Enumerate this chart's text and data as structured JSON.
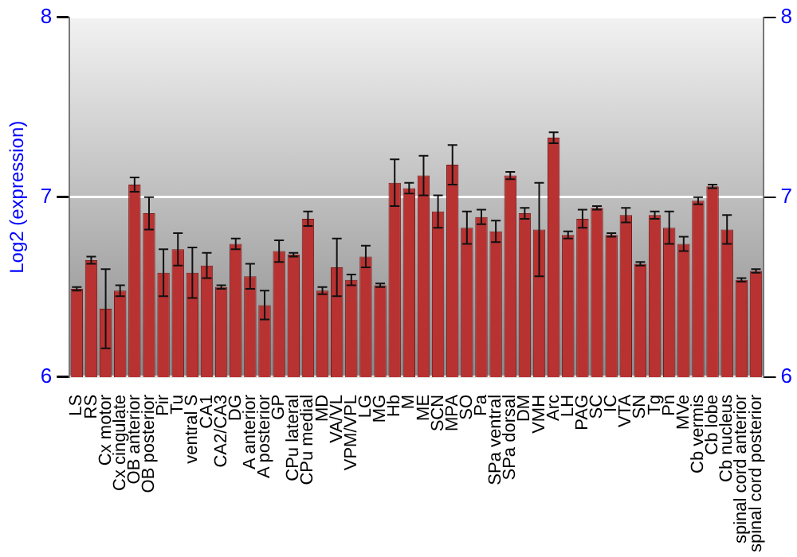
{
  "chart_data": {
    "type": "bar",
    "ylabel": "Log2 (expression)",
    "categories": [
      "LS",
      "RS",
      "Cx motor",
      "Cx cingulate",
      "OB anterior",
      "OB posterior",
      "Pir",
      "Tu",
      "ventral S",
      "CA1",
      "CA2/CA3",
      "DG",
      "A anterior",
      "A posterior",
      "GP",
      "CPu lateral",
      "CPu medial",
      "MD",
      "VA/VL",
      "VPM/VPL",
      "LG",
      "MG",
      "Hb",
      "M",
      "ME",
      "SCN",
      "MPA",
      "SO",
      "Pa",
      "SPa ventral",
      "SPa dorsal",
      "DM",
      "VMH",
      "Arc",
      "LH",
      "PAG",
      "SC",
      "IC",
      "VTA",
      "SN",
      "Tg",
      "Pn",
      "MVe",
      "Cb vermis",
      "Cb lobe",
      "Cb nucleus",
      "spinal cord anterior",
      "spinal cord posterior"
    ],
    "values": [
      6.49,
      6.65,
      6.38,
      6.48,
      7.07,
      6.91,
      6.58,
      6.71,
      6.58,
      6.62,
      6.5,
      6.74,
      6.56,
      6.4,
      6.7,
      6.68,
      6.88,
      6.48,
      6.61,
      6.54,
      6.67,
      6.51,
      7.08,
      7.05,
      7.12,
      6.92,
      7.18,
      6.83,
      6.89,
      6.81,
      7.12,
      6.91,
      6.82,
      7.33,
      6.79,
      6.88,
      6.94,
      6.79,
      6.9,
      6.63,
      6.9,
      6.83,
      6.74,
      6.98,
      7.06,
      6.82,
      6.54,
      6.59
    ],
    "errors": [
      0.01,
      0.02,
      0.22,
      0.03,
      0.04,
      0.09,
      0.13,
      0.09,
      0.14,
      0.07,
      0.01,
      0.03,
      0.07,
      0.08,
      0.06,
      0.01,
      0.04,
      0.02,
      0.16,
      0.03,
      0.06,
      0.01,
      0.13,
      0.03,
      0.11,
      0.09,
      0.11,
      0.09,
      0.04,
      0.06,
      0.02,
      0.03,
      0.26,
      0.03,
      0.02,
      0.05,
      0.01,
      0.01,
      0.04,
      0.01,
      0.02,
      0.09,
      0.04,
      0.02,
      0.01,
      0.08,
      0.01,
      0.01
    ],
    "color": "#b83232",
    "ylim": [
      6,
      8
    ],
    "yticks": [
      6,
      7,
      8
    ],
    "y2lim": [
      6,
      8
    ],
    "y2ticks": [
      6,
      7,
      8
    ],
    "grid": "y",
    "legend": false
  }
}
